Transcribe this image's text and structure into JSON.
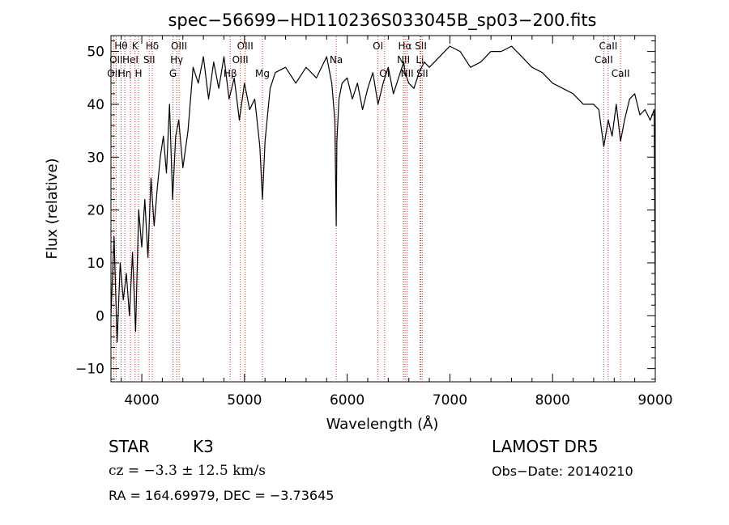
{
  "chart_data": {
    "type": "line",
    "title": "spec−56699−HD110236S033045B_sp03−200.fits",
    "xlabel": "Wavelength (Å)",
    "ylabel": "Flux (relative)",
    "xlim": [
      3700,
      9000
    ],
    "ylim": [
      -12.5,
      53
    ],
    "xticks": [
      4000,
      5000,
      6000,
      7000,
      8000,
      9000
    ],
    "xtick_labels": [
      "4000",
      "5000",
      "6000",
      "7000",
      "8000",
      "9000"
    ],
    "yticks": [
      -10,
      0,
      10,
      20,
      30,
      40,
      50
    ],
    "ytick_labels": [
      "−10",
      "0",
      "10",
      "20",
      "30",
      "40",
      "50"
    ],
    "series": [
      {
        "color": "#000000",
        "x": [
          3700,
          3730,
          3760,
          3790,
          3820,
          3850,
          3880,
          3910,
          3940,
          3970,
          4000,
          4030,
          4060,
          4090,
          4120,
          4150,
          4180,
          4210,
          4240,
          4270,
          4300,
          4330,
          4360,
          4400,
          4450,
          4500,
          4550,
          4600,
          4650,
          4700,
          4750,
          4800,
          4850,
          4900,
          4950,
          5000,
          5050,
          5100,
          5150,
          5175,
          5200,
          5250,
          5300,
          5400,
          5500,
          5600,
          5700,
          5800,
          5850,
          5880,
          5893,
          5900,
          5920,
          5950,
          6000,
          6050,
          6100,
          6150,
          6200,
          6250,
          6300,
          6350,
          6400,
          6450,
          6500,
          6550,
          6563,
          6600,
          6650,
          6700,
          6750,
          6800,
          6900,
          7000,
          7100,
          7200,
          7300,
          7400,
          7500,
          7600,
          7700,
          7800,
          7900,
          8000,
          8100,
          8200,
          8300,
          8400,
          8450,
          8498,
          8542,
          8580,
          8620,
          8662,
          8700,
          8750,
          8800,
          8850,
          8900,
          8950,
          8990,
          9000
        ],
        "y": [
          0,
          15,
          -5,
          10,
          3,
          8,
          0,
          12,
          -3,
          20,
          13,
          22,
          11,
          26,
          17,
          24,
          30,
          34,
          27,
          40,
          22,
          34,
          37,
          28,
          35,
          47,
          44,
          49,
          41,
          48,
          43,
          49,
          41,
          45,
          37,
          44,
          39,
          41,
          32,
          22,
          33,
          43,
          46,
          47,
          44,
          47,
          45,
          49,
          44,
          37,
          17,
          33,
          41,
          44,
          45,
          41,
          44,
          39,
          43,
          46,
          40,
          44,
          47,
          42,
          45,
          48,
          46,
          44,
          43,
          46,
          48,
          47,
          49,
          51,
          50,
          47,
          48,
          50,
          50,
          51,
          49,
          47,
          46,
          44,
          43,
          42,
          40,
          40,
          39,
          32,
          37,
          34,
          40,
          33,
          37,
          41,
          42,
          38,
          39,
          37,
          39,
          2
        ]
      }
    ],
    "line_markers": [
      {
        "label": "OII",
        "x": 3727,
        "row": 3
      },
      {
        "label": "Hθ",
        "x": 3798,
        "row": 1
      },
      {
        "label": "OII",
        "x": 3750,
        "row": 2
      },
      {
        "label": "Hη",
        "x": 3835,
        "row": 3
      },
      {
        "label": "K",
        "x": 3934,
        "row": 1
      },
      {
        "label": "HeI",
        "x": 3889,
        "row": 2
      },
      {
        "label": "H",
        "x": 3968,
        "row": 3
      },
      {
        "label": "Hδ",
        "x": 4102,
        "row": 1
      },
      {
        "label": "SII",
        "x": 4072,
        "row": 2
      },
      {
        "label": "OIII",
        "x": 4363,
        "row": 1
      },
      {
        "label": "Hγ",
        "x": 4340,
        "row": 2
      },
      {
        "label": "G",
        "x": 4304,
        "row": 3
      },
      {
        "label": "OIII",
        "x": 5007,
        "row": 1
      },
      {
        "label": "OIII",
        "x": 4959,
        "row": 2
      },
      {
        "label": "Hβ",
        "x": 4861,
        "row": 3
      },
      {
        "label": "Mg",
        "x": 5175,
        "row": 3
      },
      {
        "label": "Na",
        "x": 5893,
        "row": 2
      },
      {
        "label": "OI",
        "x": 6300,
        "row": 1
      },
      {
        "label": "OI",
        "x": 6364,
        "row": 3
      },
      {
        "label": "Hα",
        "x": 6563,
        "row": 1
      },
      {
        "label": "NII",
        "x": 6548,
        "row": 2
      },
      {
        "label": "NII",
        "x": 6584,
        "row": 3
      },
      {
        "label": "SII",
        "x": 6717,
        "row": 1
      },
      {
        "label": "Li",
        "x": 6708,
        "row": 2
      },
      {
        "label": "SII",
        "x": 6731,
        "row": 3
      },
      {
        "label": "CaII",
        "x": 8542,
        "row": 1
      },
      {
        "label": "CaII",
        "x": 8498,
        "row": 2
      },
      {
        "label": "CaII",
        "x": 8662,
        "row": 3
      }
    ]
  },
  "info": {
    "class_label": "STAR",
    "subclass_label": "K3",
    "survey_label": "LAMOST DR5",
    "cz_text": "cz = −3.3 ± 12.5 km/s",
    "obs_date_text": "Obs−Date: 20140210",
    "radec_text": "RA = 164.69979, DEC =  −3.73645"
  }
}
